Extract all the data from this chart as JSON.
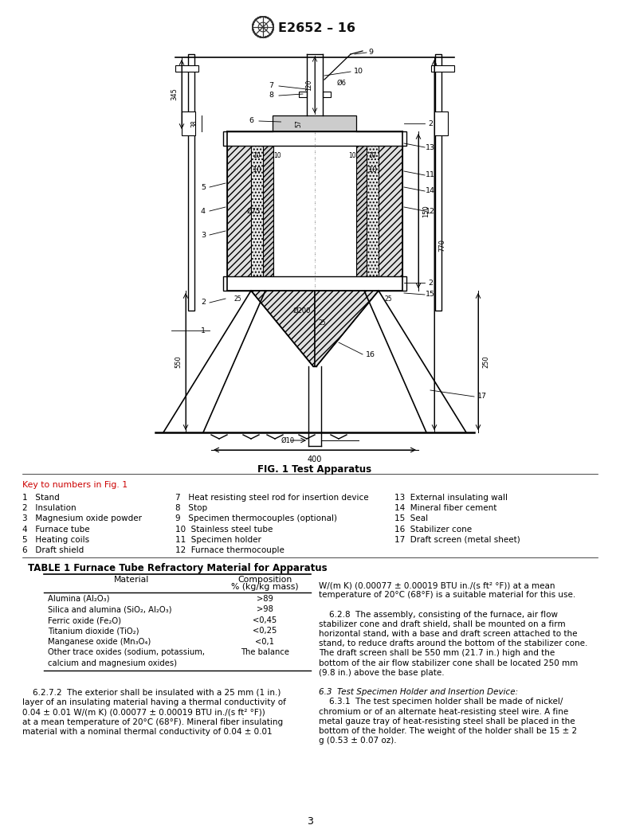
{
  "header_text": "E2652 – 16",
  "fig_caption": "FIG. 1 Test Apparatus",
  "key_intro": "Key to numbers in Fig. 1",
  "key_col1": [
    "1   Stand",
    "2   Insulation",
    "3   Magnesium oxide powder",
    "4   Furnace tube",
    "5   Heating coils",
    "6   Draft shield"
  ],
  "key_col2": [
    "7   Heat resisting steel rod for insertion device",
    "8   Stop",
    "9   Specimen thermocouples (optional)",
    "10  Stainless steel tube",
    "11  Specimen holder",
    "12  Furnace thermocouple"
  ],
  "key_col3": [
    "13  External insulating wall",
    "14  Mineral fiber cement",
    "15  Seal",
    "16  Stabilizer cone",
    "17  Draft screen (metal sheet)"
  ],
  "table_title": "TABLE 1 Furnace Tube Refractory Material for Apparatus",
  "table_col1_header": "Material",
  "table_col2_header": "Composition\n% (kg/kg mass)",
  "table_rows": [
    [
      "Alumina (Al₂O₃)",
      ">89"
    ],
    [
      "Silica and alumina (SiO₂, Al₂O₃)",
      ">98"
    ],
    [
      "Ferric oxide (Fe₂O)",
      "<0,45"
    ],
    [
      "Titanium dioxide (TiO₂)",
      "<0,25"
    ],
    [
      "Manganese oxide (Mn₃O₄)",
      "<0,1"
    ],
    [
      "Other trace oxides (sodium, potassium,",
      "The balance"
    ],
    [
      "calcium and magnesium oxides)",
      ""
    ]
  ],
  "left_col_lines": [
    "    6.2.7.2  The exterior shall be insulated with a 25 mm (1 in.)",
    "layer of an insulating material having a thermal conductivity of",
    "0.04 ± 0.01 W/(m K) (0.00077 ± 0.00019 BTU in./(s ft² °F))",
    "at a mean temperature of 20°C (68°F). Mineral fiber insulating",
    "material with a nominal thermal conductivity of 0.04 ± 0.01"
  ],
  "right_col_lines": [
    "W/(m K) (0.00077 ± 0.00019 BTU in./(s ft² °F)) at a mean",
    "temperature of 20°C (68°F) is a suitable material for this use.",
    "",
    "    6.2.8  The assembly, consisting of the furnace, air flow",
    "stabilizer cone and draft shield, shall be mounted on a firm",
    "horizontal stand, with a base and draft screen attached to the",
    "stand, to reduce drafts around the bottom of the stabilizer cone.",
    "The draft screen shall be 550 mm (21.7 in.) high and the",
    "bottom of the air flow stabilizer cone shall be located 250 mm",
    "(9.8 in.) above the base plate.",
    "",
    "    6.3  Test Specimen Holder and Insertion Device:",
    "    6.3.1  The test specimen holder shall be made of nickel/",
    "chromium or of an alternate heat-resisting steel wire. A fine",
    "metal gauze tray of heat-resisting steel shall be placed in the",
    "bottom of the holder. The weight of the holder shall be 15 ± 2",
    "g (0.53 ± 0.07 oz)."
  ],
  "section_63_italic_line": "    6.3  Test Specimen Holder and Insertion Device:",
  "page_number": "3",
  "bg_color": "#ffffff",
  "text_color": "#000000",
  "red_color": "#cc0000"
}
